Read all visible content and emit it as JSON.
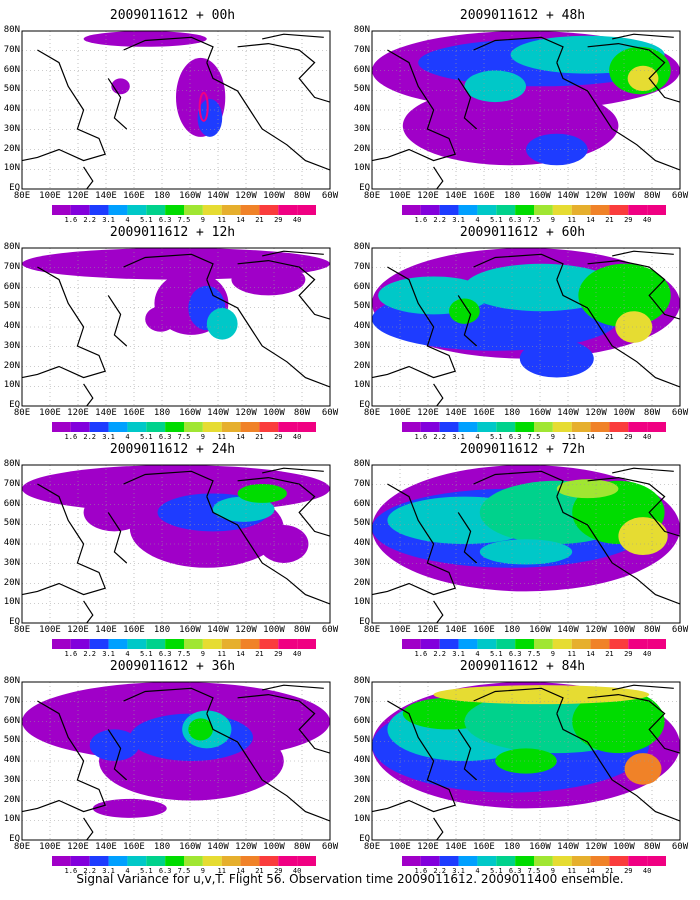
{
  "panels": [
    {
      "title": "2009011612 + 00h",
      "level": 0
    },
    {
      "title": "2009011612 + 12h",
      "level": 1
    },
    {
      "title": "2009011612 + 24h",
      "level": 2
    },
    {
      "title": "2009011612 + 36h",
      "level": 3
    },
    {
      "title": "2009011612 + 48h",
      "level": 4
    },
    {
      "title": "2009011612 + 60h",
      "level": 5
    },
    {
      "title": "2009011612 + 72h",
      "level": 6
    },
    {
      "title": "2009011612 + 84h",
      "level": 7
    }
  ],
  "lat_labels": [
    "80N",
    "70N",
    "60N",
    "50N",
    "40N",
    "30N",
    "20N",
    "10N",
    "EQ"
  ],
  "lon_labels": [
    "80E",
    "100E",
    "120E",
    "140E",
    "160E",
    "180",
    "160W",
    "140W",
    "120W",
    "100W",
    "80W",
    "60W"
  ],
  "colorbar": {
    "labels": [
      "1.6",
      "2.2",
      "3.1",
      "4",
      "5.1",
      "6.3",
      "7.5",
      "9",
      "11",
      "14",
      "21",
      "29",
      "40"
    ],
    "colors": [
      "#a000c8",
      "#8200dc",
      "#1e3cff",
      "#00a0ff",
      "#00c8c8",
      "#00d28c",
      "#00dc00",
      "#a0e632",
      "#e6dc32",
      "#e6af2d",
      "#f08228",
      "#fa3c3c",
      "#f00082"
    ]
  },
  "caption": "Signal Variance for u,v,T. Flight 56. Observation time 2009011612. 2009011400 ensemble."
}
